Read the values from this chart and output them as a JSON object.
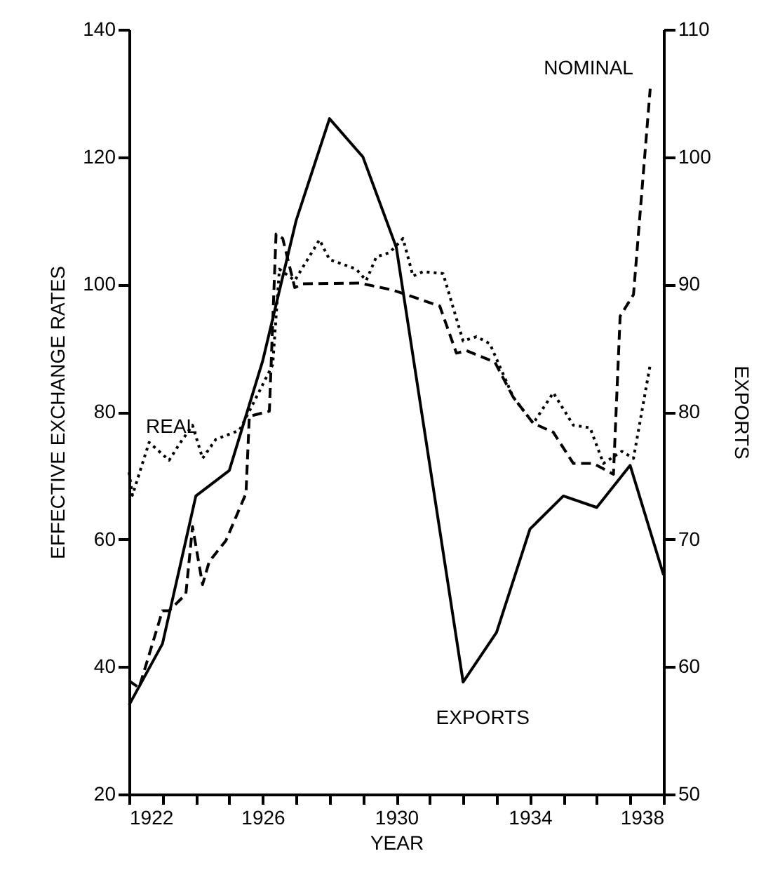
{
  "chart_data": {
    "type": "line",
    "xlabel": "YEAR",
    "ylabel": "EFFECTIVE EXCHANGE RATES",
    "y2label": "EXPORTS",
    "xlim": [
      1922,
      1938
    ],
    "xticks": [
      1922,
      {
        "value": 1923,
        "label": null
      },
      {
        "value": 1924,
        "label": null
      },
      {
        "value": 1925,
        "label": null
      },
      1926,
      {
        "value": 1927,
        "label": null
      },
      {
        "value": 1928,
        "label": null
      },
      {
        "value": 1929,
        "label": null
      },
      1930,
      {
        "value": 1931,
        "label": null
      },
      {
        "value": 1932,
        "label": null
      },
      {
        "value": 1933,
        "label": null
      },
      1934,
      {
        "value": 1935,
        "label": null
      },
      {
        "value": 1936,
        "label": null
      },
      {
        "value": 1937,
        "label": null
      },
      1938
    ],
    "ylim": [
      20,
      140
    ],
    "yticks": [
      20,
      40,
      60,
      80,
      100,
      120,
      140
    ],
    "y2lim": [
      50,
      110
    ],
    "y2ticks": [
      50,
      60,
      70,
      80,
      90,
      100,
      110
    ],
    "grid": false,
    "marker": "none",
    "series": [
      {
        "name": "REAL",
        "color": "#000000",
        "line_style": "dotted",
        "x": [
          1922,
          1922.1,
          1922.6,
          1923.2,
          1923.5,
          1923.9,
          1924.2,
          1924.6,
          1925.3,
          1925.6,
          1926.3,
          1926.5,
          1926.96,
          1927.7,
          1928,
          1928.8,
          1929.1,
          1929.4,
          1929.8,
          1930.2,
          1930.5,
          1930.8,
          1931.4,
          1932,
          1932.4,
          1932.8,
          1933.5,
          1934.1,
          1934.7,
          1935.3,
          1935.8,
          1936.2,
          1936.75,
          1937.1,
          1937.6
        ],
        "values": [
          70.5,
          66.9,
          75.2,
          72.4,
          74.9,
          77.9,
          72.7,
          75.7,
          77.1,
          80.1,
          87.4,
          102.4,
          100.6,
          107,
          103.9,
          102.4,
          100.6,
          104.3,
          105,
          107.2,
          101.3,
          102,
          101.7,
          91.1,
          91.8,
          90.7,
          82.3,
          78.2,
          83,
          77.9,
          77.5,
          71.9,
          73.8,
          72.7,
          87.4
        ]
      },
      {
        "name": "NOMINAL",
        "color": "#000000",
        "line_style": "dashed",
        "x": [
          1922,
          1922.3,
          1923,
          1923.2,
          1923.7,
          1923.9,
          1924.2,
          1924.4,
          1924.9,
          1925.5,
          1925.6,
          1926.2,
          1926.4,
          1926.6,
          1926.96,
          1927.2,
          1928.9,
          1929.9,
          1931.3,
          1931.8,
          1932.1,
          1932.95,
          1933.5,
          1934.1,
          1934.7,
          1935.3,
          1935.9,
          1936.5,
          1936.7,
          1937.1,
          1937.6
        ],
        "values": [
          37.8,
          36.7,
          48.8,
          48.8,
          51.4,
          62,
          52.9,
          56.5,
          59.8,
          67.2,
          79.3,
          80.1,
          107.9,
          107.2,
          99.5,
          100.1,
          100.2,
          99.1,
          96.6,
          89.2,
          89.6,
          87.8,
          82.3,
          78.2,
          76.8,
          71.9,
          71.9,
          70.2,
          95,
          98.4,
          130.7
        ]
      },
      {
        "name": "EXPORTS",
        "color": "#000000",
        "line_style": "solid",
        "axis": "y2",
        "x": [
          1922,
          1923,
          1924,
          1925,
          1926,
          1927,
          1928,
          1929,
          1930,
          1932,
          1933,
          1934,
          1935,
          1936,
          1937,
          1938
        ],
        "values": [
          57,
          61.8,
          73.4,
          75.4,
          84,
          95,
          103,
          100,
          92.9,
          58.8,
          62.7,
          70.8,
          73.4,
          72.5,
          75.8,
          67.2
        ]
      }
    ]
  }
}
